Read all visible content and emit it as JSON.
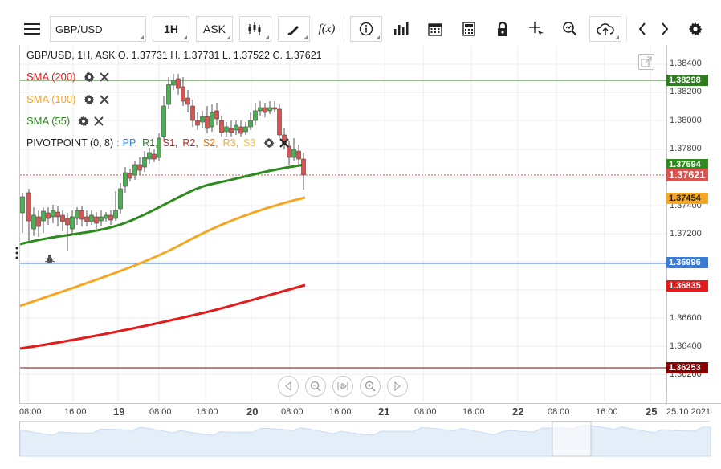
{
  "toolbar": {
    "symbol": "GBP/USD",
    "interval": "1H",
    "price_type": "ASK",
    "fx_label": "f(x)",
    "icons": [
      "menu-icon",
      "candles-icon",
      "draw-icon",
      "fx-icon",
      "info-icon",
      "volume-icon",
      "calendar-icon",
      "calculator-icon",
      "lock-icon",
      "crosshair-icon",
      "zoom-icon",
      "cloud-upload-icon",
      "prev-icon",
      "next-icon",
      "settings-icon"
    ]
  },
  "legend": {
    "ohlc": "GBP/USD, 1H, ASK   O. 1.37731 H. 1.37731 L. 1.37522 C. 1.37621",
    "sma200": "SMA (200)",
    "sma100": "SMA (100)",
    "sma55": "SMA (55)",
    "pivot_prefix": "PIVOTPOINT (0, 8)",
    "pivot_sep": " : ",
    "pivot_items": [
      {
        "label": "PP",
        "color": "#1e88e5"
      },
      {
        "label": "R1",
        "color": "#2e7d32"
      },
      {
        "label": "S1",
        "color": "#c62828"
      },
      {
        "label": "R2",
        "color": "#c62828"
      },
      {
        "label": "S2",
        "color": "#ef6c00"
      },
      {
        "label": "R3",
        "color": "#f9a825"
      },
      {
        "label": "S3",
        "color": "#fbc02d"
      }
    ]
  },
  "colors": {
    "sma200": "#e41b1b",
    "sma100": "#f5a623",
    "sma55": "#2e8b1e",
    "up_candle": "#4caf50",
    "down_candle": "#d9534f",
    "pp_line": "#3a7bd5",
    "r_line": "#2e7d1e",
    "s_line": "#8b0000"
  },
  "price_axis": {
    "ticks": [
      "1.38400",
      "1.38200",
      "1.38000",
      "1.37800",
      "1.37400",
      "1.37200",
      "1.36600",
      "1.36400",
      "1.36200"
    ]
  },
  "price_tags": [
    {
      "value": "1.38298",
      "color": "#2e7d1e"
    },
    {
      "value": "1.37694",
      "color": "#2e8b1e"
    },
    {
      "value": "1.37621",
      "color": "#d9534f"
    },
    {
      "value": "1.37454",
      "color": "#f5a623"
    },
    {
      "value": "1.36996",
      "color": "#3a7bd5"
    },
    {
      "value": "1.36835",
      "color": "#e41b1b"
    },
    {
      "value": "1.36253",
      "color": "#8b0000"
    }
  ],
  "time_axis": [
    {
      "label": "08:00",
      "major": false
    },
    {
      "label": "16:00",
      "major": false
    },
    {
      "label": "19",
      "major": true
    },
    {
      "label": "08:00",
      "major": false
    },
    {
      "label": "16:00",
      "major": false
    },
    {
      "label": "20",
      "major": true
    },
    {
      "label": "08:00",
      "major": false
    },
    {
      "label": "16:00",
      "major": false
    },
    {
      "label": "21",
      "major": true
    },
    {
      "label": "08:00",
      "major": false
    },
    {
      "label": "16:00",
      "major": false
    },
    {
      "label": "22",
      "major": true
    },
    {
      "label": "08:00",
      "major": false
    },
    {
      "label": "16:00",
      "major": false
    },
    {
      "label": "25",
      "major": true
    },
    {
      "label": "25.10.2021",
      "major": false
    }
  ]
}
